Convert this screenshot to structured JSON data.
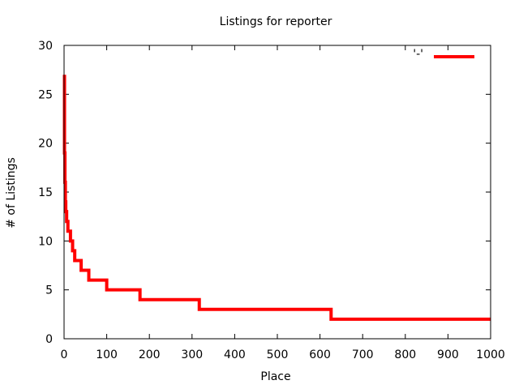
{
  "chart_data": {
    "type": "line",
    "title": "Listings for reporter",
    "xlabel": "Place",
    "ylabel": "# of Listings",
    "xlim": [
      0,
      1000
    ],
    "ylim": [
      0,
      30
    ],
    "x_ticks": [
      0,
      100,
      200,
      300,
      400,
      500,
      600,
      700,
      800,
      900,
      1000
    ],
    "y_ticks": [
      0,
      5,
      10,
      15,
      20,
      25,
      30
    ],
    "grid": false,
    "legend_position": "top-right",
    "line_color": "#ff0000",
    "series": [
      {
        "name": "'-'",
        "steps": [
          {
            "from": 1,
            "to": 1,
            "value": 27
          },
          {
            "from": 1,
            "to": 2,
            "value": 19
          },
          {
            "from": 2,
            "to": 3,
            "value": 16
          },
          {
            "from": 3,
            "to": 4,
            "value": 14
          },
          {
            "from": 4,
            "to": 6,
            "value": 13
          },
          {
            "from": 6,
            "to": 9,
            "value": 12
          },
          {
            "from": 9,
            "to": 15,
            "value": 11
          },
          {
            "from": 15,
            "to": 20,
            "value": 10
          },
          {
            "from": 20,
            "to": 25,
            "value": 9
          },
          {
            "from": 25,
            "to": 40,
            "value": 8
          },
          {
            "from": 40,
            "to": 58,
            "value": 7
          },
          {
            "from": 58,
            "to": 100,
            "value": 6
          },
          {
            "from": 100,
            "to": 178,
            "value": 5
          },
          {
            "from": 178,
            "to": 317,
            "value": 4
          },
          {
            "from": 317,
            "to": 626,
            "value": 3
          },
          {
            "from": 626,
            "to": 1000,
            "value": 2
          }
        ]
      }
    ]
  }
}
